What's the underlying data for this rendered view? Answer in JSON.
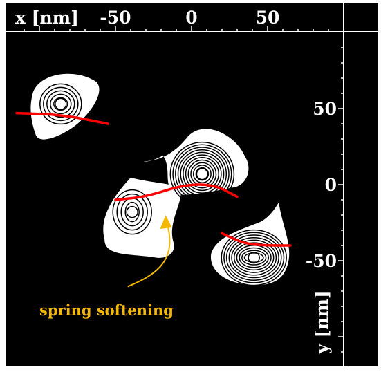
{
  "chart_data": {
    "type": "contour",
    "xlabel": "x [nm]",
    "ylabel": "y [nm]",
    "xticks": [
      "-50",
      "0",
      "50"
    ],
    "yticks": [
      "50",
      "0",
      "-50"
    ],
    "xtick_values": [
      -50,
      0,
      50
    ],
    "ytick_values": [
      50,
      0,
      -50
    ],
    "xlim": [
      -117,
      98
    ],
    "ylim": [
      -123,
      100
    ],
    "grid": false,
    "colors": {
      "background": "#000000",
      "blob": "#ffffff",
      "contour": "#000000",
      "trajectory": "#ff0000",
      "annotation": "#f5b800",
      "axis": "#ffffff"
    },
    "blobs": [
      {
        "name": "top-left",
        "center": [
          -86,
          53
        ],
        "rings": 5
      },
      {
        "name": "center-left",
        "center": [
          -39,
          -18
        ],
        "rings": 4
      },
      {
        "name": "center-right",
        "center": [
          7,
          7
        ],
        "rings": 11
      },
      {
        "name": "bottom-right",
        "center": [
          41,
          -48
        ],
        "rings": 10
      }
    ],
    "red_curves": [
      {
        "name": "top-left-path",
        "points": [
          [
            -115,
            47
          ],
          [
            -85,
            46
          ],
          [
            -55,
            40
          ]
        ]
      },
      {
        "name": "middle-path",
        "points": [
          [
            -50,
            -10
          ],
          [
            -30,
            -8
          ],
          [
            -5,
            0
          ],
          [
            15,
            0
          ],
          [
            30,
            -8
          ]
        ]
      },
      {
        "name": "bottom-right-path",
        "points": [
          [
            20,
            -32
          ],
          [
            35,
            -39
          ],
          [
            50,
            -40
          ],
          [
            65,
            -40
          ]
        ]
      }
    ],
    "annotation": {
      "text": "spring softening",
      "arrow_from": [
        -42,
        -67
      ],
      "arrow_to": [
        -17,
        -20
      ]
    }
  }
}
